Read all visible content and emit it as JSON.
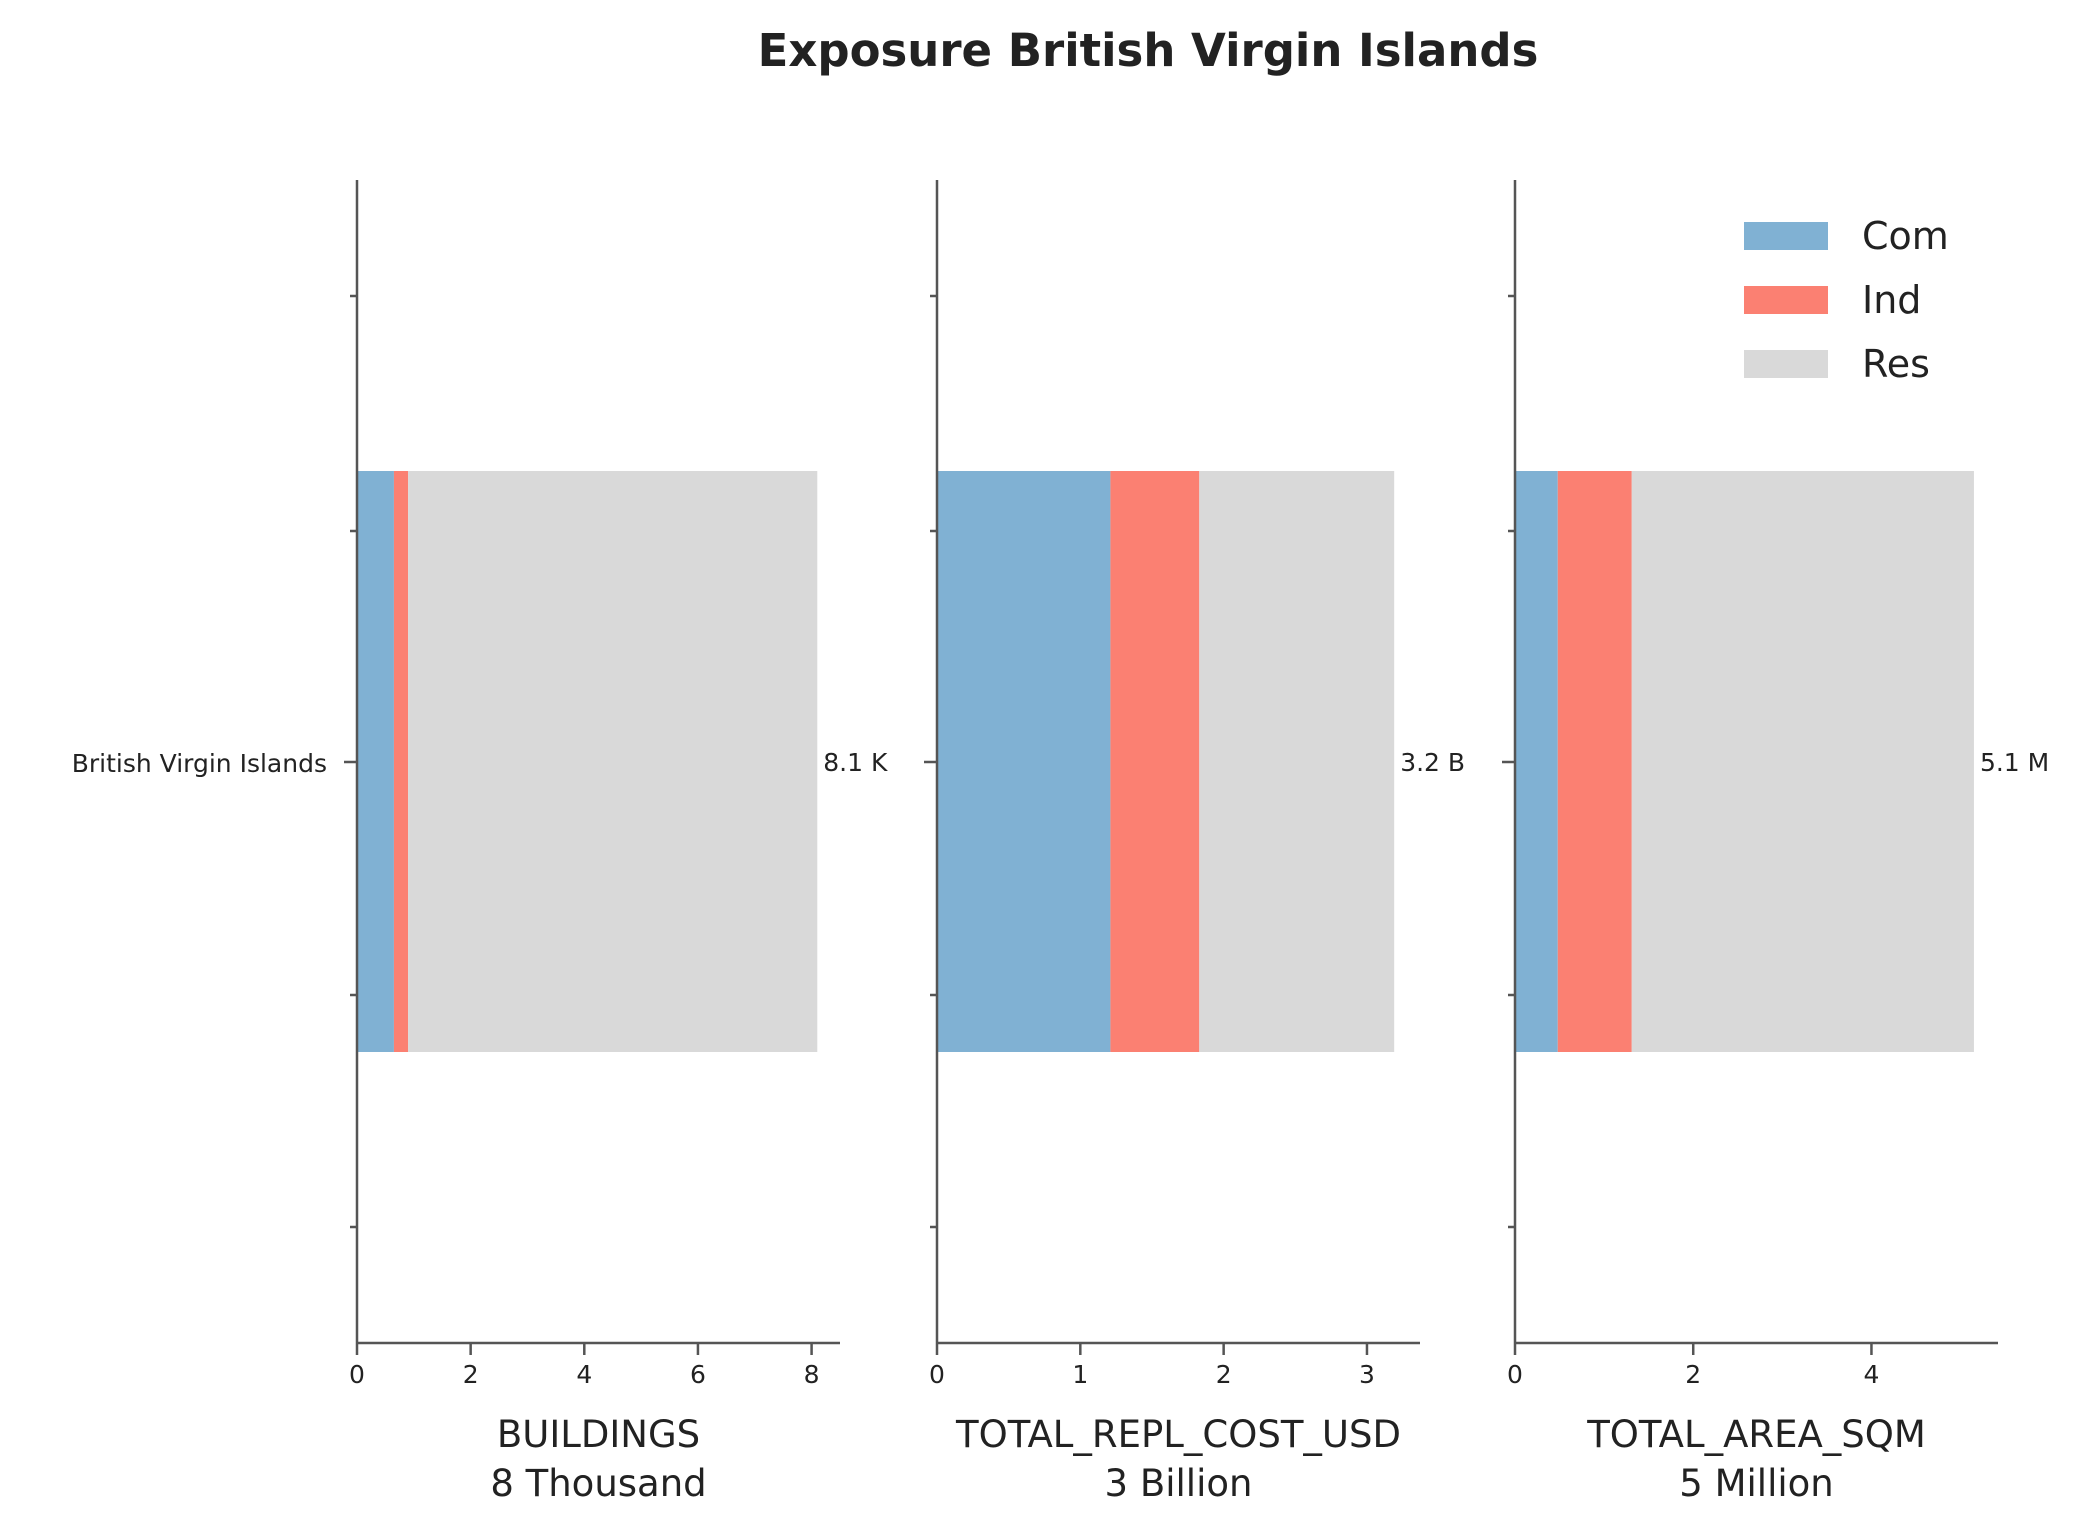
{
  "chart_data": {
    "type": "bar",
    "orientation": "horizontal",
    "stacked": true,
    "title": "Exposure British Virgin Islands",
    "category": "British Virgin Islands",
    "legend": {
      "placement": "top-right",
      "entries": [
        {
          "name": "Com",
          "color": "#80b1d3"
        },
        {
          "name": "Ind",
          "color": "#fb8072"
        },
        {
          "name": "Res",
          "color": "#d9d9d9"
        }
      ]
    },
    "grid": false,
    "panels": [
      {
        "xlabel": "BUILDINGS",
        "scale_label": "8 Thousand",
        "xlim": [
          0,
          8.5
        ],
        "ticks": [
          0,
          2,
          4,
          6,
          8
        ],
        "tick_labels": [
          "0",
          "2",
          "4",
          "6",
          "8"
        ],
        "total_label": "8.1 K",
        "series": [
          {
            "name": "Com",
            "value": 0.65
          },
          {
            "name": "Ind",
            "value": 0.25
          },
          {
            "name": "Res",
            "value": 7.2
          }
        ]
      },
      {
        "xlabel": "TOTAL_REPL_COST_USD",
        "scale_label": "3 Billion",
        "xlim": [
          0,
          3.37
        ],
        "ticks": [
          0,
          1,
          2,
          3
        ],
        "tick_labels": [
          "0",
          "1",
          "2",
          "3"
        ],
        "total_label": "3.2 B",
        "series": [
          {
            "name": "Com",
            "value": 1.21
          },
          {
            "name": "Ind",
            "value": 0.62
          },
          {
            "name": "Res",
            "value": 1.36
          }
        ]
      },
      {
        "xlabel": "TOTAL_AREA_SQM",
        "scale_label": "5 Million",
        "xlim": [
          0,
          5.42
        ],
        "ticks": [
          0,
          2,
          4
        ],
        "tick_labels": [
          "0",
          "2",
          "4"
        ],
        "total_label": "5.1 M",
        "series": [
          {
            "name": "Com",
            "value": 0.48
          },
          {
            "name": "Ind",
            "value": 0.83
          },
          {
            "name": "Res",
            "value": 3.84
          }
        ]
      }
    ]
  }
}
